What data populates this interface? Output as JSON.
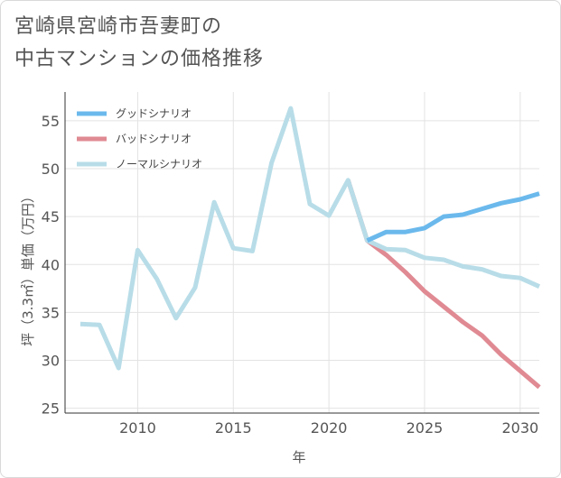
{
  "title_line1": "宮崎県宮崎市吾妻町の",
  "title_line2": "中古マンションの価格推移",
  "chart_data": {
    "type": "line",
    "title": "宮崎県宮崎市吾妻町の中古マンションの価格推移",
    "xlabel": "年",
    "ylabel": "坪（3.3㎡）単価（万円）",
    "xlim": [
      2006.2,
      2031
    ],
    "ylim": [
      24.5,
      58
    ],
    "xticks": [
      2010,
      2015,
      2020,
      2025,
      2030
    ],
    "yticks": [
      25,
      30,
      35,
      40,
      45,
      50,
      55
    ],
    "grid": true,
    "legend_position": "top-left",
    "series": [
      {
        "name": "グッドシナリオ",
        "color": "#6bb9ec",
        "x": [
          2022,
          2023,
          2024,
          2025,
          2026,
          2027,
          2028,
          2029,
          2030,
          2031
        ],
        "y": [
          42.5,
          43.4,
          43.4,
          43.8,
          45.0,
          45.2,
          45.8,
          46.4,
          46.8,
          47.4
        ]
      },
      {
        "name": "バッドシナリオ",
        "color": "#e08a93",
        "x": [
          2021,
          2022,
          2023,
          2024,
          2025,
          2026,
          2027,
          2028,
          2029,
          2030,
          2031
        ],
        "y": [
          48.8,
          42.5,
          41.0,
          39.2,
          37.2,
          35.6,
          34.0,
          32.6,
          30.6,
          28.9,
          27.2
        ]
      },
      {
        "name": "ノーマルシナリオ",
        "color": "#b8dde8",
        "x": [
          2007,
          2008,
          2009,
          2010,
          2011,
          2012,
          2013,
          2014,
          2015,
          2016,
          2017,
          2018,
          2019,
          2020,
          2021,
          2022,
          2023,
          2024,
          2025,
          2026,
          2027,
          2028,
          2029,
          2030,
          2031
        ],
        "y": [
          33.8,
          33.7,
          29.2,
          41.5,
          38.5,
          34.4,
          37.6,
          46.5,
          41.7,
          41.4,
          50.6,
          56.3,
          46.3,
          45.1,
          48.8,
          42.5,
          41.6,
          41.5,
          40.7,
          40.5,
          39.8,
          39.5,
          38.8,
          38.6,
          37.7
        ]
      }
    ]
  }
}
